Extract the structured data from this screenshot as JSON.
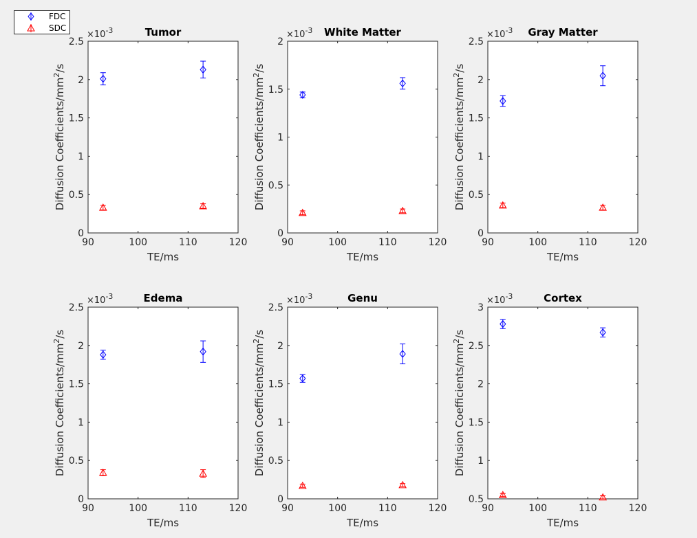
{
  "legend": {
    "entries": [
      {
        "label": "FDC",
        "color": "#0000ff",
        "marker": "diamond"
      },
      {
        "label": "SDC",
        "color": "#ff0000",
        "marker": "triangle"
      }
    ]
  },
  "chart_data": [
    {
      "type": "scatter",
      "title": "Tumor",
      "xlabel": "TE/ms",
      "ylabel": "Diffusion Coefficients/mm^2/s",
      "xlim": [
        90,
        120
      ],
      "xticks": [
        "90",
        "100",
        "110",
        "120"
      ],
      "ylim": [
        0,
        2.5
      ],
      "yticks": [
        "0",
        "0.5",
        "1",
        "1.5",
        "2",
        "2.5"
      ],
      "yticks_values": [
        0,
        0.5,
        1,
        1.5,
        2,
        2.5
      ],
      "exponent": "-3",
      "series": [
        {
          "name": "FDC",
          "x": [
            93,
            113
          ],
          "y": [
            2.01,
            2.13
          ],
          "err": [
            0.08,
            0.11
          ]
        },
        {
          "name": "SDC",
          "x": [
            93,
            113
          ],
          "y": [
            0.33,
            0.35
          ],
          "err": [
            0.03,
            0.03
          ]
        }
      ]
    },
    {
      "type": "scatter",
      "title": "White Matter",
      "xlabel": "TE/ms",
      "ylabel": "Diffusion Coefficients/mm^2/s",
      "xlim": [
        90,
        120
      ],
      "xticks": [
        "90",
        "100",
        "110",
        "120"
      ],
      "ylim": [
        0,
        2
      ],
      "yticks": [
        "0",
        "0.5",
        "1",
        "1.5",
        "2"
      ],
      "yticks_values": [
        0,
        0.5,
        1,
        1.5,
        2
      ],
      "exponent": "-3",
      "series": [
        {
          "name": "FDC",
          "x": [
            93,
            113
          ],
          "y": [
            1.44,
            1.56
          ],
          "err": [
            0.03,
            0.06
          ]
        },
        {
          "name": "SDC",
          "x": [
            93,
            113
          ],
          "y": [
            0.21,
            0.23
          ],
          "err": [
            0.02,
            0.02
          ]
        }
      ]
    },
    {
      "type": "scatter",
      "title": "Gray Matter",
      "xlabel": "TE/ms",
      "ylabel": "Diffusion Coefficients/mm^2/s",
      "xlim": [
        90,
        120
      ],
      "xticks": [
        "90",
        "100",
        "110",
        "120"
      ],
      "ylim": [
        0,
        2.5
      ],
      "yticks": [
        "0",
        "0.5",
        "1",
        "1.5",
        "2",
        "2.5"
      ],
      "yticks_values": [
        0,
        0.5,
        1,
        1.5,
        2,
        2.5
      ],
      "exponent": "-3",
      "series": [
        {
          "name": "FDC",
          "x": [
            93,
            113
          ],
          "y": [
            1.72,
            2.05
          ],
          "err": [
            0.07,
            0.13
          ]
        },
        {
          "name": "SDC",
          "x": [
            93,
            113
          ],
          "y": [
            0.36,
            0.33
          ],
          "err": [
            0.03,
            0.03
          ]
        }
      ]
    },
    {
      "type": "scatter",
      "title": "Edema",
      "xlabel": "TE/ms",
      "ylabel": "Diffusion Coefficients/mm^2/s",
      "xlim": [
        90,
        120
      ],
      "xticks": [
        "90",
        "100",
        "110",
        "120"
      ],
      "ylim": [
        0,
        2.5
      ],
      "yticks": [
        "0",
        "0.5",
        "1",
        "1.5",
        "2",
        "2.5"
      ],
      "yticks_values": [
        0,
        0.5,
        1,
        1.5,
        2,
        2.5
      ],
      "exponent": "-3",
      "series": [
        {
          "name": "FDC",
          "x": [
            93,
            113
          ],
          "y": [
            1.88,
            1.92
          ],
          "err": [
            0.06,
            0.14
          ]
        },
        {
          "name": "SDC",
          "x": [
            93,
            113
          ],
          "y": [
            0.34,
            0.33
          ],
          "err": [
            0.04,
            0.05
          ]
        }
      ]
    },
    {
      "type": "scatter",
      "title": "Genu",
      "xlabel": "TE/ms",
      "ylabel": "Diffusion Coefficients/mm^2/s",
      "xlim": [
        90,
        120
      ],
      "xticks": [
        "90",
        "100",
        "110",
        "120"
      ],
      "ylim": [
        0,
        2.5
      ],
      "yticks": [
        "0",
        "0.5",
        "1",
        "1.5",
        "2",
        "2.5"
      ],
      "yticks_values": [
        0,
        0.5,
        1,
        1.5,
        2,
        2.5
      ],
      "exponent": "-3",
      "series": [
        {
          "name": "FDC",
          "x": [
            93,
            113
          ],
          "y": [
            1.57,
            1.89
          ],
          "err": [
            0.05,
            0.13
          ]
        },
        {
          "name": "SDC",
          "x": [
            93,
            113
          ],
          "y": [
            0.17,
            0.18
          ],
          "err": [
            0.02,
            0.02
          ]
        }
      ]
    },
    {
      "type": "scatter",
      "title": "Cortex",
      "xlabel": "TE/ms",
      "ylabel": "Diffusion Coefficients/mm^2/s",
      "xlim": [
        90,
        120
      ],
      "xticks": [
        "90",
        "100",
        "110",
        "120"
      ],
      "ylim": [
        0.5,
        3
      ],
      "yticks": [
        "0.5",
        "1",
        "1.5",
        "2",
        "2.5",
        "3"
      ],
      "yticks_values": [
        0.5,
        1,
        1.5,
        2,
        2.5,
        3
      ],
      "exponent": "-3",
      "series": [
        {
          "name": "FDC",
          "x": [
            93,
            113
          ],
          "y": [
            2.78,
            2.67
          ],
          "err": [
            0.06,
            0.06
          ]
        },
        {
          "name": "SDC",
          "x": [
            93,
            113
          ],
          "y": [
            0.55,
            0.52
          ],
          "err": [
            0.02,
            0.02
          ]
        }
      ]
    }
  ]
}
